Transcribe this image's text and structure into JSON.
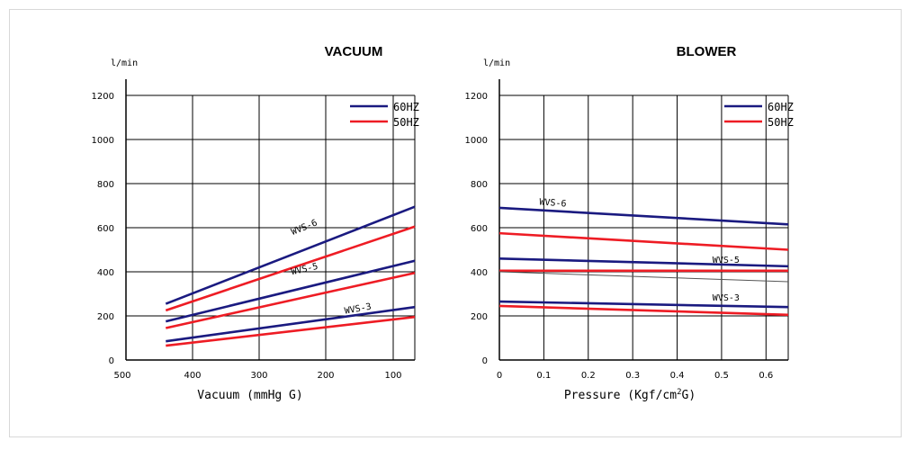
{
  "chart_data": [
    {
      "type": "line",
      "title": "VACUUM",
      "ylabel": "l/min",
      "xlabel": "Vacuum (mmHg G)",
      "xlim": [
        500,
        65
      ],
      "ylim": [
        0,
        1300
      ],
      "x_ticks": [
        500,
        400,
        300,
        200,
        100
      ],
      "x_tick_labels": [
        "500",
        "400",
        "300",
        "200",
        "100"
      ],
      "y_ticks": [
        0,
        200,
        400,
        600,
        800,
        1000,
        1200
      ],
      "grid": true,
      "legend": [
        {
          "label": "60HZ",
          "color": "#1a1a80"
        },
        {
          "label": "50HZ",
          "color": "#ee1c24"
        }
      ],
      "legend_position": "top-right",
      "series": [
        {
          "name": "WVS-6",
          "freq": "60HZ",
          "color": "#1a1a80",
          "x": [
            440,
            65
          ],
          "y": [
            255,
            695
          ]
        },
        {
          "name": "WVS-6",
          "freq": "50HZ",
          "color": "#ee1c24",
          "x": [
            440,
            65
          ],
          "y": [
            225,
            605
          ]
        },
        {
          "name": "WVS-5",
          "freq": "60HZ",
          "color": "#1a1a80",
          "x": [
            440,
            65
          ],
          "y": [
            175,
            450
          ]
        },
        {
          "name": "WVS-5",
          "freq": "50HZ",
          "color": "#ee1c24",
          "x": [
            440,
            65
          ],
          "y": [
            145,
            395
          ]
        },
        {
          "name": "WVS-3",
          "freq": "60HZ",
          "color": "#1a1a80",
          "x": [
            440,
            65
          ],
          "y": [
            85,
            240
          ]
        },
        {
          "name": "WVS-3",
          "freq": "50HZ",
          "color": "#ee1c24",
          "x": [
            440,
            65
          ],
          "y": [
            65,
            195
          ]
        }
      ],
      "annotations": [
        {
          "text": "WVS-6",
          "x": 230,
          "y": 590
        },
        {
          "text": "WVS-5",
          "x": 230,
          "y": 400
        },
        {
          "text": "WVS-3",
          "x": 150,
          "y": 220
        }
      ]
    },
    {
      "type": "line",
      "title": "BLOWER",
      "ylabel": "l/min",
      "xlabel": "Pressure (Kgf/cm",
      "xlabel_sup": "2",
      "xlabel_end": "G)",
      "xlim": [
        0,
        0.65
      ],
      "ylim": [
        0,
        1300
      ],
      "x_ticks": [
        0,
        0.1,
        0.2,
        0.3,
        0.4,
        0.5,
        0.6
      ],
      "x_tick_labels": [
        "0",
        "0.1",
        "0.2",
        "0.3",
        "0.4",
        "0.5",
        "0.6"
      ],
      "y_ticks": [
        0,
        200,
        400,
        600,
        800,
        1000,
        1200
      ],
      "grid": true,
      "legend": [
        {
          "label": "60HZ",
          "color": "#1a1a80"
        },
        {
          "label": "50HZ",
          "color": "#ee1c24"
        }
      ],
      "legend_position": "top-right",
      "series": [
        {
          "name": "WVS-6",
          "freq": "60HZ",
          "color": "#1a1a80",
          "x": [
            0,
            0.65
          ],
          "y": [
            690,
            615
          ]
        },
        {
          "name": "WVS-6",
          "freq": "50HZ",
          "color": "#ee1c24",
          "x": [
            0,
            0.65
          ],
          "y": [
            575,
            500
          ]
        },
        {
          "name": "WVS-5",
          "freq": "60HZ",
          "color": "#1a1a80",
          "x": [
            0,
            0.65
          ],
          "y": [
            460,
            425
          ]
        },
        {
          "name": "WVS-5",
          "freq": "50HZ",
          "color": "#ee1c24",
          "x": [
            0,
            0.65
          ],
          "y": [
            405,
            405
          ]
        },
        {
          "name": "",
          "freq": "",
          "color": "#555555",
          "x": [
            0,
            0.65
          ],
          "y": [
            400,
            355
          ],
          "thin": true
        },
        {
          "name": "WVS-3",
          "freq": "60HZ",
          "color": "#1a1a80",
          "x": [
            0,
            0.65
          ],
          "y": [
            265,
            240
          ]
        },
        {
          "name": "WVS-3",
          "freq": "50HZ",
          "color": "#ee1c24",
          "x": [
            0,
            0.65
          ],
          "y": [
            245,
            205
          ]
        }
      ],
      "annotations": [
        {
          "text": "WVS-6",
          "x": 0.12,
          "y": 700
        },
        {
          "text": "WVS-5",
          "x": 0.51,
          "y": 440
        },
        {
          "text": "WVS-3",
          "x": 0.51,
          "y": 270
        }
      ]
    }
  ]
}
